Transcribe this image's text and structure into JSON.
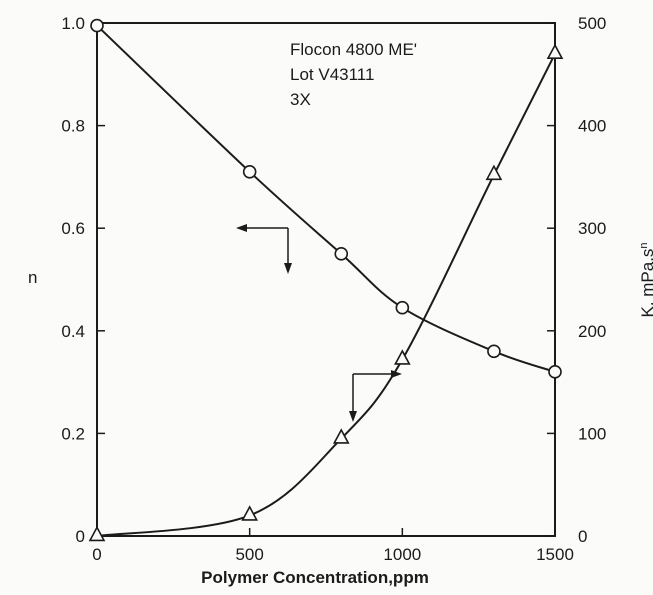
{
  "chart_data": {
    "type": "line",
    "xlabel": "Polymer Concentration,ppm",
    "ylabel_left": "n",
    "ylabel_right": "K, mPa.s",
    "ylabel_right_superscript": "n",
    "xlim": [
      0,
      1500
    ],
    "ylim_left": [
      0,
      1.0
    ],
    "ylim_right": [
      0,
      500
    ],
    "x_ticks": [
      0,
      500,
      1000,
      1500
    ],
    "x_tick_labels": [
      "0",
      "500",
      "1000",
      "1500"
    ],
    "y_left_ticks": [
      0,
      0.2,
      0.4,
      0.6,
      0.8,
      1.0
    ],
    "y_left_tick_labels": [
      "0",
      "0.2",
      "0.4",
      "0.6",
      "0.8",
      "1.0"
    ],
    "y_right_ticks": [
      0,
      100,
      200,
      300,
      400,
      500
    ],
    "y_right_tick_labels": [
      "0",
      "100",
      "200",
      "300",
      "400",
      "500"
    ],
    "annotation": [
      "Flocon 4800 ME'",
      "Lot V43111",
      "3X"
    ],
    "grid": false,
    "series": [
      {
        "axis": "left",
        "marker": "circle",
        "x": [
          0,
          500,
          800,
          1000,
          1300,
          1500
        ],
        "y": [
          0.995,
          0.71,
          0.55,
          0.445,
          0.36,
          0.32
        ]
      },
      {
        "axis": "right",
        "marker": "triangle",
        "x": [
          0,
          500,
          800,
          1000,
          1300,
          1500
        ],
        "y": [
          0,
          20,
          95,
          172,
          352,
          470
        ]
      }
    ]
  }
}
